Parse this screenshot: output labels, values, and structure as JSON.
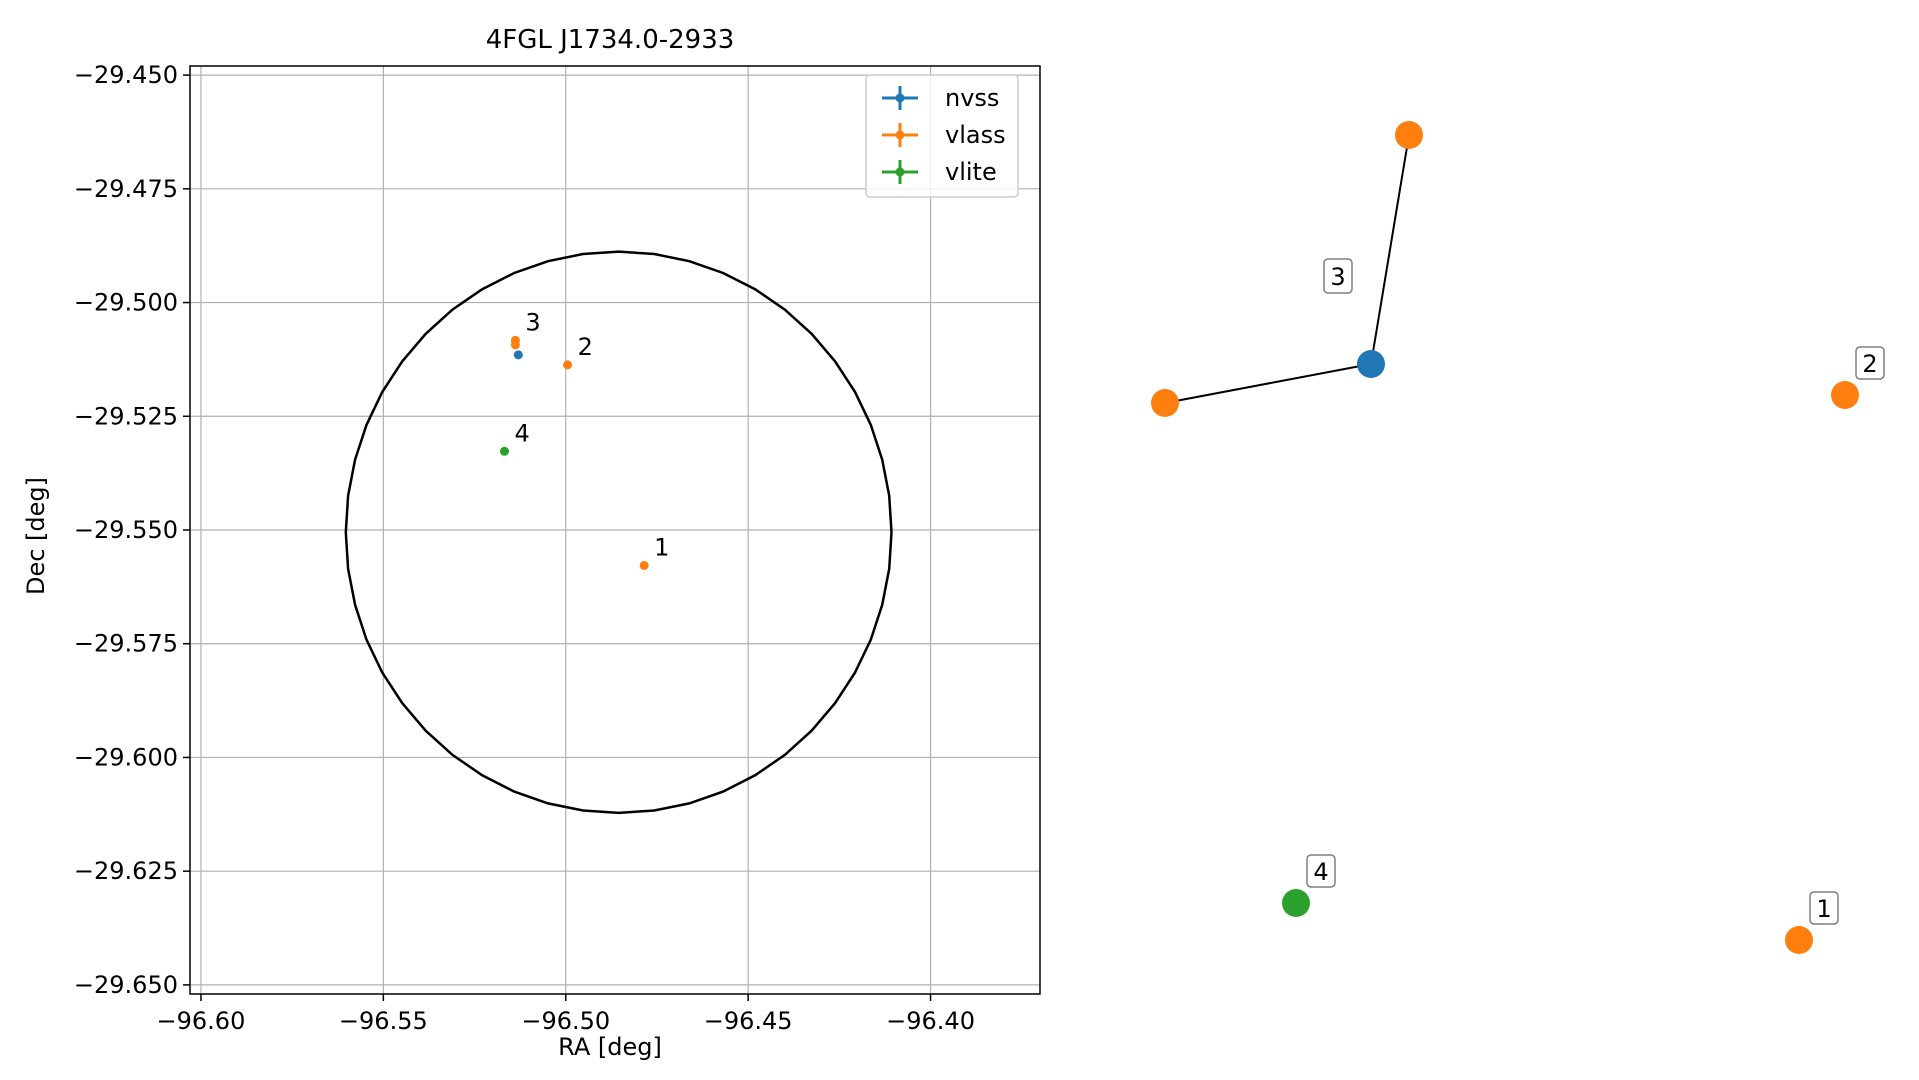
{
  "chart_data": [
    {
      "type": "scatter",
      "title": "4FGL J1734.0-2933",
      "xlabel": "RA [deg]",
      "ylabel": "Dec [deg]",
      "xlim": [
        -96.603,
        -96.37
      ],
      "ylim": [
        -29.652,
        -29.448
      ],
      "x_ticks": [
        -96.6,
        -96.55,
        -96.5,
        -96.45,
        -96.4
      ],
      "x_tick_labels": [
        "−96.60",
        "−96.55",
        "−96.50",
        "−96.45",
        "−96.40"
      ],
      "y_ticks": [
        -29.45,
        -29.475,
        -29.5,
        -29.525,
        -29.55,
        -29.575,
        -29.6,
        -29.625,
        -29.65
      ],
      "y_tick_labels": [
        "−29.450",
        "−29.475",
        "−29.500",
        "−29.525",
        "−29.550",
        "−29.575",
        "−29.600",
        "−29.625",
        "−29.650"
      ],
      "grid": true,
      "legend_placement": "upper right",
      "series": [
        {
          "name": "nvss",
          "color": "#1f77b4",
          "points": [
            {
              "x": -96.513,
              "y": -29.5115
            }
          ]
        },
        {
          "name": "vlass",
          "color": "#ff7f0e",
          "points": [
            {
              "x": -96.4785,
              "y": -29.5578
            },
            {
              "x": -96.4995,
              "y": -29.5137
            },
            {
              "x": -96.5138,
              "y": -29.5083
            },
            {
              "x": -96.5138,
              "y": -29.5093
            }
          ]
        },
        {
          "name": "vlite",
          "color": "#2ca02c",
          "points": [
            {
              "x": -96.5168,
              "y": -29.5327
            }
          ]
        }
      ],
      "annotations": [
        {
          "text": "1",
          "x": -96.4785,
          "y": -29.5578
        },
        {
          "text": "2",
          "x": -96.4995,
          "y": -29.5137
        },
        {
          "text": "3",
          "x": -96.5138,
          "y": -29.5083
        },
        {
          "text": "4",
          "x": -96.5168,
          "y": -29.5327
        }
      ],
      "ellipse": {
        "center_x": -96.4855,
        "center_y": -29.5505,
        "semi_axis_ra": 0.0748,
        "semi_axis_dec": 0.0617,
        "color": "#000000"
      }
    },
    {
      "type": "network",
      "nodes": [
        {
          "id": "nvss",
          "color": "#1f77b4",
          "label": ""
        },
        {
          "id": "v1",
          "color": "#ff7f0e",
          "label": "1"
        },
        {
          "id": "v2",
          "color": "#ff7f0e",
          "label": "2"
        },
        {
          "id": "v3a",
          "color": "#ff7f0e",
          "label": ""
        },
        {
          "id": "v3b",
          "color": "#ff7f0e",
          "label": ""
        },
        {
          "id": "vlite",
          "color": "#2ca02c",
          "label": "4"
        }
      ],
      "edges": [
        [
          "nvss",
          "v3a"
        ],
        [
          "nvss",
          "v3b"
        ]
      ],
      "edge_labels": [
        {
          "text": "3"
        }
      ]
    }
  ]
}
